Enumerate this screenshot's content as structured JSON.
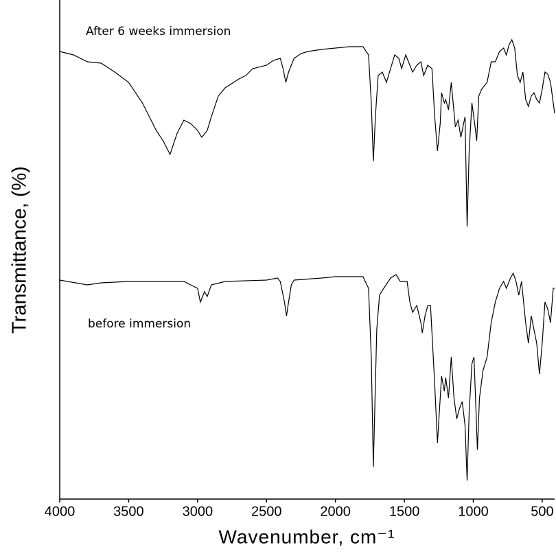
{
  "chart_data": {
    "type": "line",
    "xlabel": "Wavenumber, cm⁻¹",
    "ylabel": "Transmittance, (%)",
    "xlim": [
      4000,
      410
    ],
    "xticks": [
      4000,
      3500,
      3000,
      2500,
      2000,
      1500,
      1000,
      500
    ],
    "ylim": [
      0,
      725
    ],
    "series": [
      {
        "name": "After 6 weeks immersion",
        "color": "#000000",
        "x": [
          4000,
          3900,
          3800,
          3700,
          3600,
          3500,
          3400,
          3300,
          3250,
          3200,
          3150,
          3100,
          3050,
          3000,
          2970,
          2930,
          2900,
          2850,
          2800,
          2700,
          2650,
          2600,
          2500,
          2450,
          2400,
          2380,
          2360,
          2340,
          2300,
          2250,
          2200,
          2100,
          2000,
          1900,
          1800,
          1760,
          1740,
          1725,
          1710,
          1690,
          1660,
          1630,
          1600,
          1570,
          1540,
          1520,
          1490,
          1470,
          1440,
          1410,
          1380,
          1360,
          1330,
          1300,
          1280,
          1260,
          1240,
          1230,
          1210,
          1200,
          1180,
          1160,
          1130,
          1110,
          1090,
          1070,
          1060,
          1045,
          1030,
          1010,
          990,
          975,
          960,
          940,
          900,
          870,
          840,
          810,
          780,
          760,
          740,
          720,
          700,
          680,
          660,
          640,
          620,
          600,
          580,
          560,
          540,
          520,
          500,
          480,
          460,
          440,
          420,
          410
        ],
        "values": [
          652,
          647,
          637,
          635,
          622,
          607,
          577,
          537,
          522,
          502,
          532,
          552,
          547,
          537,
          527,
          537,
          557,
          587,
          599,
          612,
          617,
          627,
          632,
          639,
          642,
          627,
          607,
          622,
          642,
          649,
          652,
          655,
          657,
          659,
          659,
          647,
          577,
          492,
          557,
          617,
          622,
          607,
          627,
          647,
          642,
          627,
          647,
          637,
          622,
          632,
          637,
          617,
          632,
          627,
          557,
          507,
          547,
          592,
          577,
          582,
          567,
          607,
          542,
          552,
          527,
          547,
          557,
          397,
          507,
          577,
          547,
          522,
          587,
          597,
          607,
          637,
          637,
          652,
          657,
          647,
          662,
          669,
          657,
          617,
          607,
          622,
          582,
          572,
          587,
          592,
          582,
          577,
          597,
          622,
          619,
          607,
          577,
          562
        ]
      },
      {
        "name": "before immersion",
        "color": "#000000",
        "x": [
          4000,
          3800,
          3700,
          3500,
          3300,
          3100,
          3000,
          2980,
          2950,
          2930,
          2900,
          2800,
          2500,
          2420,
          2400,
          2370,
          2355,
          2340,
          2320,
          2300,
          2100,
          2000,
          1800,
          1760,
          1740,
          1725,
          1715,
          1700,
          1680,
          1650,
          1600,
          1560,
          1530,
          1500,
          1480,
          1460,
          1440,
          1410,
          1380,
          1370,
          1350,
          1330,
          1310,
          1280,
          1260,
          1240,
          1230,
          1210,
          1200,
          1180,
          1160,
          1140,
          1120,
          1100,
          1080,
          1060,
          1045,
          1030,
          1010,
          995,
          980,
          970,
          955,
          930,
          900,
          870,
          840,
          810,
          780,
          760,
          730,
          710,
          690,
          670,
          650,
          620,
          600,
          580,
          560,
          540,
          520,
          500,
          480,
          460,
          440,
          420,
          410
        ],
        "values": [
          319,
          312,
          315,
          317,
          317,
          317,
          307,
          287,
          302,
          295,
          312,
          317,
          319,
          322,
          317,
          287,
          267,
          287,
          312,
          319,
          322,
          324,
          324,
          307,
          207,
          47,
          127,
          247,
          297,
          307,
          322,
          327,
          317,
          317,
          317,
          287,
          272,
          282,
          257,
          242,
          267,
          282,
          282,
          167,
          82,
          147,
          179,
          157,
          177,
          147,
          207,
          147,
          117,
          132,
          142,
          107,
          27,
          127,
          197,
          207,
          127,
          72,
          147,
          187,
          207,
          257,
          287,
          307,
          317,
          307,
          322,
          329,
          317,
          297,
          317,
          257,
          227,
          267,
          247,
          227,
          182,
          227,
          287,
          277,
          257,
          307,
          307
        ]
      }
    ]
  }
}
